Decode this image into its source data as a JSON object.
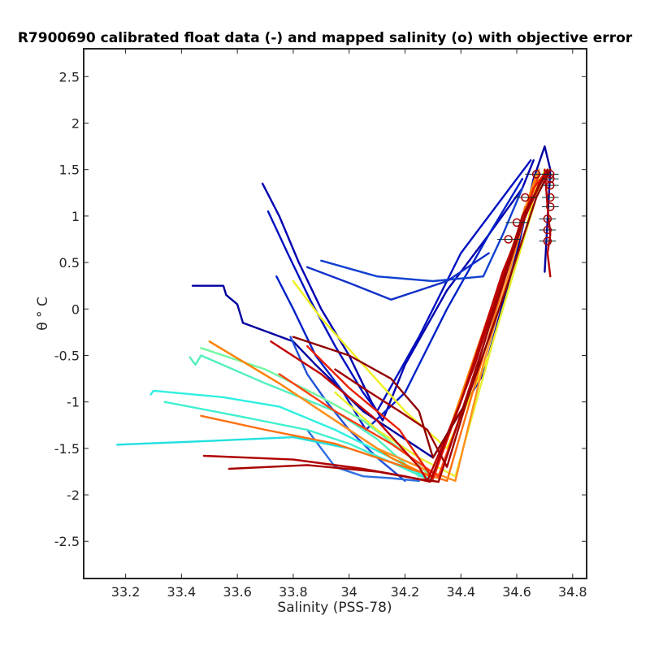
{
  "chart_data": {
    "type": "line",
    "title": "R7900690 calibrated float data (-) and mapped salinity (o) with objective error",
    "xlabel": "Salinity (PSS-78)",
    "ylabel": "θ ° C",
    "xlim": [
      33.05,
      34.85
    ],
    "ylim": [
      -2.9,
      2.8
    ],
    "xticks": [
      "33.2",
      "33.4",
      "33.6",
      "33.8",
      "34",
      "34.2",
      "34.4",
      "34.6",
      "34.8"
    ],
    "yticks": [
      "-2.5",
      "-2",
      "-1.5",
      "-1",
      "-0.5",
      "0",
      "0.5",
      "1",
      "1.5",
      "2",
      "2.5"
    ],
    "grid": false,
    "series": [
      {
        "color": "#0000a0",
        "x": [
          33.44,
          33.55,
          33.56,
          33.6,
          33.62,
          33.8,
          33.88,
          34.05,
          34.3,
          34.48,
          34.6,
          34.66,
          34.7,
          34.72,
          34.7
        ],
        "y": [
          0.25,
          0.25,
          0.15,
          0.05,
          -0.15,
          -0.35,
          -0.6,
          -1.1,
          -1.6,
          -0.7,
          0.6,
          1.4,
          1.75,
          1.5,
          0.4
        ]
      },
      {
        "color": "#0000b0",
        "x": [
          33.69,
          33.75,
          33.82,
          33.9,
          34.0,
          34.08,
          34.12,
          34.2,
          34.35,
          34.5,
          34.62,
          34.66
        ],
        "y": [
          1.35,
          1.0,
          0.5,
          0.0,
          -0.5,
          -1.0,
          -1.2,
          -0.6,
          0.2,
          0.8,
          1.3,
          1.6
        ]
      },
      {
        "color": "#0010c0",
        "x": [
          33.71,
          33.78,
          33.86,
          33.95,
          34.05,
          34.1,
          34.25,
          34.4,
          34.55,
          34.65
        ],
        "y": [
          1.05,
          0.6,
          0.1,
          -0.4,
          -0.9,
          -1.1,
          -0.3,
          0.6,
          1.2,
          1.6
        ]
      },
      {
        "color": "#0020c8",
        "x": [
          33.74,
          33.8,
          33.88,
          33.98,
          34.06,
          34.2,
          34.35,
          34.5,
          34.62
        ],
        "y": [
          0.35,
          0.0,
          -0.5,
          -0.9,
          -1.3,
          -0.9,
          0.0,
          0.8,
          1.4
        ]
      },
      {
        "color": "#1040d0",
        "x": [
          33.9,
          34.1,
          34.3,
          34.48,
          34.55,
          34.62
        ],
        "y": [
          0.52,
          0.35,
          0.3,
          0.35,
          0.8,
          1.3
        ]
      },
      {
        "color": "#1030c8",
        "x": [
          33.85,
          34.0,
          34.15,
          34.35,
          34.5
        ],
        "y": [
          0.45,
          0.28,
          0.1,
          0.3,
          0.6
        ]
      },
      {
        "color": "#2050d8",
        "x": [
          33.79,
          33.85,
          33.92,
          34.0,
          34.1,
          34.2
        ],
        "y": [
          -0.3,
          -0.7,
          -1.0,
          -1.3,
          -1.6,
          -1.85
        ]
      },
      {
        "color": "#3070e0",
        "x": [
          33.85,
          33.9,
          33.95,
          34.05,
          34.15,
          34.25
        ],
        "y": [
          -1.3,
          -1.5,
          -1.7,
          -1.8,
          -1.82,
          -1.85
        ]
      },
      {
        "color": "#20e0e0",
        "x": [
          33.17,
          33.5,
          33.8,
          34.0,
          34.2,
          34.3
        ],
        "y": [
          -1.46,
          -1.42,
          -1.38,
          -1.5,
          -1.7,
          -1.85
        ]
      },
      {
        "color": "#30f0e0",
        "x": [
          33.29,
          33.3,
          33.55,
          33.75,
          33.95,
          34.15,
          34.28
        ],
        "y": [
          -0.92,
          -0.88,
          -0.95,
          -1.05,
          -1.3,
          -1.6,
          -1.82
        ]
      },
      {
        "color": "#40f0d0",
        "x": [
          33.34,
          33.6,
          33.85,
          34.0,
          34.15,
          34.28
        ],
        "y": [
          -1.0,
          -1.15,
          -1.3,
          -1.45,
          -1.65,
          -1.83
        ]
      },
      {
        "color": "#50f0c0",
        "x": [
          33.43,
          33.45,
          33.47,
          33.7,
          33.95,
          34.1,
          34.25
        ],
        "y": [
          -0.52,
          -0.6,
          -0.5,
          -0.8,
          -1.1,
          -1.4,
          -1.8
        ]
      },
      {
        "color": "#70f8a0",
        "x": [
          33.47,
          33.7,
          33.9,
          34.05,
          34.2,
          34.3
        ],
        "y": [
          -0.42,
          -0.65,
          -0.95,
          -1.2,
          -1.55,
          -1.82
        ]
      },
      {
        "color": "#f0f020",
        "x": [
          33.8,
          33.9,
          34.05,
          34.2,
          34.35,
          34.5,
          34.62,
          34.68
        ],
        "y": [
          0.3,
          -0.1,
          -0.6,
          -1.1,
          -1.5,
          -0.5,
          0.7,
          1.45
        ]
      },
      {
        "color": "#e8f030",
        "x": [
          33.95,
          34.1,
          34.25,
          34.38,
          34.52,
          34.65,
          34.7
        ],
        "y": [
          -0.9,
          -1.3,
          -1.6,
          -1.8,
          -0.3,
          1.0,
          1.5
        ]
      },
      {
        "color": "#ff8000",
        "x": [
          33.5,
          33.75,
          33.95,
          34.15,
          34.3,
          34.45,
          34.6,
          34.67
        ],
        "y": [
          -0.35,
          -0.8,
          -1.2,
          -1.6,
          -1.82,
          -0.5,
          0.8,
          1.45
        ]
      },
      {
        "color": "#ff7010",
        "x": [
          33.47,
          33.7,
          33.95,
          34.2,
          34.35,
          34.5,
          34.63
        ],
        "y": [
          -1.15,
          -1.3,
          -1.45,
          -1.7,
          -1.85,
          -0.3,
          1.1
        ]
      },
      {
        "color": "#ff9020",
        "x": [
          33.8,
          33.95,
          34.1,
          34.25,
          34.38,
          34.48,
          34.62,
          34.68
        ],
        "y": [
          -0.9,
          -1.2,
          -1.5,
          -1.7,
          -1.85,
          -0.6,
          0.9,
          1.5
        ]
      },
      {
        "color": "#ff4010",
        "x": [
          33.75,
          33.95,
          34.15,
          34.32,
          34.44,
          34.58,
          34.68
        ],
        "y": [
          -0.7,
          -1.1,
          -1.45,
          -1.8,
          -0.8,
          0.6,
          1.45
        ]
      },
      {
        "color": "#e82000",
        "x": [
          33.85,
          34.0,
          34.18,
          34.3,
          34.4,
          34.55,
          34.66,
          34.71
        ],
        "y": [
          -0.4,
          -0.85,
          -1.3,
          -1.83,
          -1.0,
          0.3,
          1.3,
          1.5
        ]
      },
      {
        "color": "#c00000",
        "x": [
          33.72,
          33.9,
          34.1,
          34.25,
          34.28,
          34.4,
          34.55,
          34.68,
          34.72
        ],
        "y": [
          -0.35,
          -0.7,
          -1.2,
          -1.7,
          -1.85,
          -1.0,
          0.4,
          1.35,
          1.5
        ]
      },
      {
        "color": "#b00000",
        "x": [
          33.48,
          33.8,
          34.05,
          34.2,
          34.29,
          34.45,
          34.6,
          34.7
        ],
        "y": [
          -1.58,
          -1.62,
          -1.72,
          -1.8,
          -1.86,
          -0.6,
          0.8,
          1.45
        ]
      },
      {
        "color": "#a80000",
        "x": [
          33.57,
          33.85,
          34.1,
          34.25,
          34.32,
          34.48,
          34.62,
          34.71
        ],
        "y": [
          -1.72,
          -1.68,
          -1.75,
          -1.83,
          -1.86,
          -0.4,
          1.0,
          1.48
        ]
      },
      {
        "color": "#900000",
        "x": [
          33.8,
          34.0,
          34.15,
          34.25,
          34.3,
          34.42,
          34.56,
          34.67,
          34.72
        ],
        "y": [
          -0.3,
          -0.5,
          -0.75,
          -1.1,
          -1.6,
          -1.0,
          0.2,
          1.2,
          1.5
        ]
      },
      {
        "color": "#a00000",
        "x": [
          33.95,
          34.05,
          34.18,
          34.28,
          34.35,
          34.5,
          34.64,
          34.71
        ],
        "y": [
          -0.65,
          -0.85,
          -1.1,
          -1.3,
          -1.7,
          -0.2,
          1.1,
          1.5
        ]
      },
      {
        "color": "#b80000",
        "x": [
          34.7,
          34.71,
          34.72,
          34.71,
          34.72
        ],
        "y": [
          1.5,
          1.1,
          0.8,
          0.6,
          0.35
        ]
      }
    ],
    "mapped_points": [
      {
        "x": 34.72,
        "y": 1.45,
        "err": 0.03
      },
      {
        "x": 34.72,
        "y": 1.4,
        "err": 0.03
      },
      {
        "x": 34.72,
        "y": 1.33,
        "err": 0.03
      },
      {
        "x": 34.72,
        "y": 1.2,
        "err": 0.03
      },
      {
        "x": 34.72,
        "y": 1.1,
        "err": 0.03
      },
      {
        "x": 34.71,
        "y": 0.97,
        "err": 0.03
      },
      {
        "x": 34.71,
        "y": 0.85,
        "err": 0.03
      },
      {
        "x": 34.71,
        "y": 0.73,
        "err": 0.03
      },
      {
        "x": 34.67,
        "y": 1.45,
        "err": 0.04
      },
      {
        "x": 34.63,
        "y": 1.2,
        "err": 0.04
      },
      {
        "x": 34.6,
        "y": 0.93,
        "err": 0.04
      },
      {
        "x": 34.57,
        "y": 0.75,
        "err": 0.04
      }
    ]
  }
}
